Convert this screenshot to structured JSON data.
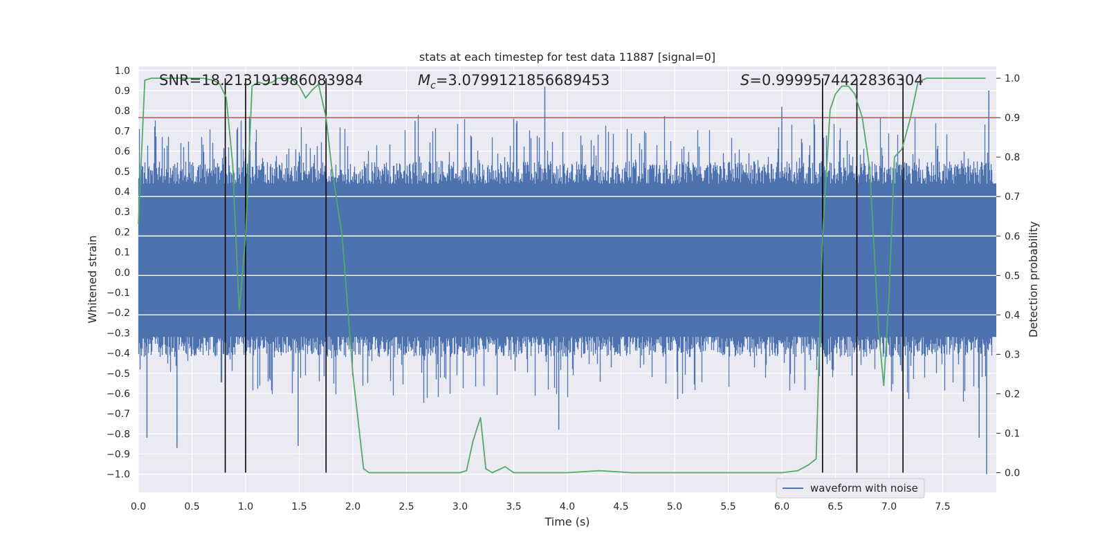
{
  "chart_data": {
    "type": "line",
    "title": "stats at each timestep for test data 11887 [signal=0]",
    "xlabel": "Time (s)",
    "ylabel_left": "Whitened strain",
    "ylabel_right": "Detection probability",
    "xlim": [
      0.0,
      8.0
    ],
    "ylim_left": [
      -1.09,
      1.02
    ],
    "ylim_right": [
      -0.05,
      1.03
    ],
    "x_ticks": [
      0.0,
      0.5,
      1.0,
      1.5,
      2.0,
      2.5,
      3.0,
      3.5,
      4.0,
      4.5,
      5.0,
      5.5,
      6.0,
      6.5,
      7.0,
      7.5
    ],
    "x_tick_labels": [
      "0.0",
      "0.5",
      "1.0",
      "1.5",
      "2.0",
      "2.5",
      "3.0",
      "3.5",
      "4.0",
      "4.5",
      "5.0",
      "5.5",
      "6.0",
      "6.5",
      "7.0",
      "7.5"
    ],
    "y_left_ticks": [
      1.0,
      0.9,
      0.8,
      0.7,
      0.6,
      0.5,
      0.4,
      0.3,
      0.2,
      0.1,
      0.0,
      -0.1,
      -0.2,
      -0.3,
      -0.4,
      -0.5,
      -0.6,
      -0.7,
      -0.8,
      -0.9,
      -1.0
    ],
    "y_left_tick_labels": [
      "1.0",
      "0.9",
      "0.8",
      "0.7",
      "0.6",
      "0.5",
      "0.4",
      "0.3",
      "0.2",
      "0.1",
      "0.0",
      "−0.1",
      "−0.2",
      "−0.3",
      "−0.4",
      "−0.5",
      "−0.6",
      "−0.7",
      "−0.8",
      "−0.9",
      "−1.0"
    ],
    "y_right_ticks": [
      1.0,
      0.9,
      0.8,
      0.7,
      0.6,
      0.5,
      0.4,
      0.3,
      0.2,
      0.1,
      0.0
    ],
    "y_right_tick_labels": [
      "1.0",
      "0.9",
      "0.8",
      "0.7",
      "0.6",
      "0.5",
      "0.4",
      "0.3",
      "0.2",
      "0.1",
      "0.0"
    ],
    "grid": true,
    "legend_position": "lower-right",
    "annotations": {
      "snr": "SNR=18.213191986083984",
      "mc_symbol": "M",
      "mc_subscript": "c",
      "mc_value": "=3.0799121856689453",
      "s_symbol": "S",
      "s_value": "=0.9999574422836304"
    },
    "series": [
      {
        "name": "waveform with noise",
        "axis": "left",
        "color": "#4c72b0",
        "style": "dense noise",
        "band": [
          -0.35,
          0.48
        ],
        "peaks": [
          {
            "x": 0.08,
            "y": -0.82
          },
          {
            "x": 0.36,
            "y": -0.87
          },
          {
            "x": 1.49,
            "y": -0.86
          },
          {
            "x": 2.58,
            "y": 0.75
          },
          {
            "x": 3.79,
            "y": 0.92
          },
          {
            "x": 3.53,
            "y": 0.75
          },
          {
            "x": 3.92,
            "y": -0.78
          },
          {
            "x": 6.0,
            "y": 0.82
          },
          {
            "x": 7.93,
            "y": 0.9
          },
          {
            "x": 7.91,
            "y": -1.0
          },
          {
            "x": 6.7,
            "y": 0.77
          },
          {
            "x": 7.84,
            "y": -0.82
          }
        ]
      },
      {
        "name": "detection probability",
        "axis": "right",
        "color": "#55a868",
        "x": [
          0.0,
          0.06,
          0.12,
          0.2,
          0.3,
          0.4,
          0.5,
          0.6,
          0.7,
          0.76,
          0.82,
          0.88,
          0.94,
          1.0,
          1.06,
          1.12,
          1.18,
          1.25,
          1.3,
          1.36,
          1.42,
          1.5,
          1.56,
          1.62,
          1.68,
          1.75,
          1.8,
          1.9,
          2.0,
          2.1,
          2.15,
          2.25,
          2.5,
          2.7,
          3.0,
          3.06,
          3.12,
          3.19,
          3.24,
          3.3,
          3.42,
          3.5,
          3.6,
          3.7,
          4.0,
          4.3,
          4.6,
          5.0,
          5.5,
          6.0,
          6.15,
          6.25,
          6.32,
          6.38,
          6.45,
          6.5,
          6.56,
          6.62,
          6.68,
          6.75,
          6.82,
          6.9,
          6.95,
          7.0,
          7.05,
          7.12,
          7.2,
          7.27,
          7.35,
          7.5,
          7.9
        ],
        "values": [
          0.63,
          0.995,
          1.0,
          1.0,
          1.0,
          1.0,
          1.0,
          1.0,
          0.995,
          0.985,
          0.95,
          0.78,
          0.41,
          0.6,
          0.98,
          0.99,
          0.985,
          0.99,
          1.0,
          1.0,
          1.0,
          0.98,
          0.95,
          0.97,
          0.985,
          0.9,
          0.78,
          0.6,
          0.25,
          0.01,
          0.0,
          0.0,
          0.0,
          0.0,
          0.0,
          0.005,
          0.08,
          0.14,
          0.01,
          0.0,
          0.015,
          0.0,
          0.0,
          0.0,
          0.0,
          0.005,
          0.0,
          0.0,
          0.0,
          0.0,
          0.005,
          0.02,
          0.035,
          0.6,
          0.92,
          0.96,
          0.98,
          0.98,
          0.96,
          0.9,
          0.77,
          0.37,
          0.22,
          0.45,
          0.8,
          0.82,
          0.9,
          0.99,
          1.0,
          1.0,
          1.0
        ]
      }
    ],
    "threshold": {
      "axis": "right",
      "y": 0.9,
      "color": "#c44e52"
    },
    "vertical_lines": [
      0.81,
      1.0,
      1.75,
      6.38,
      6.7,
      7.13
    ],
    "vertical_line_range_right": [
      0.0,
      1.0
    ]
  }
}
